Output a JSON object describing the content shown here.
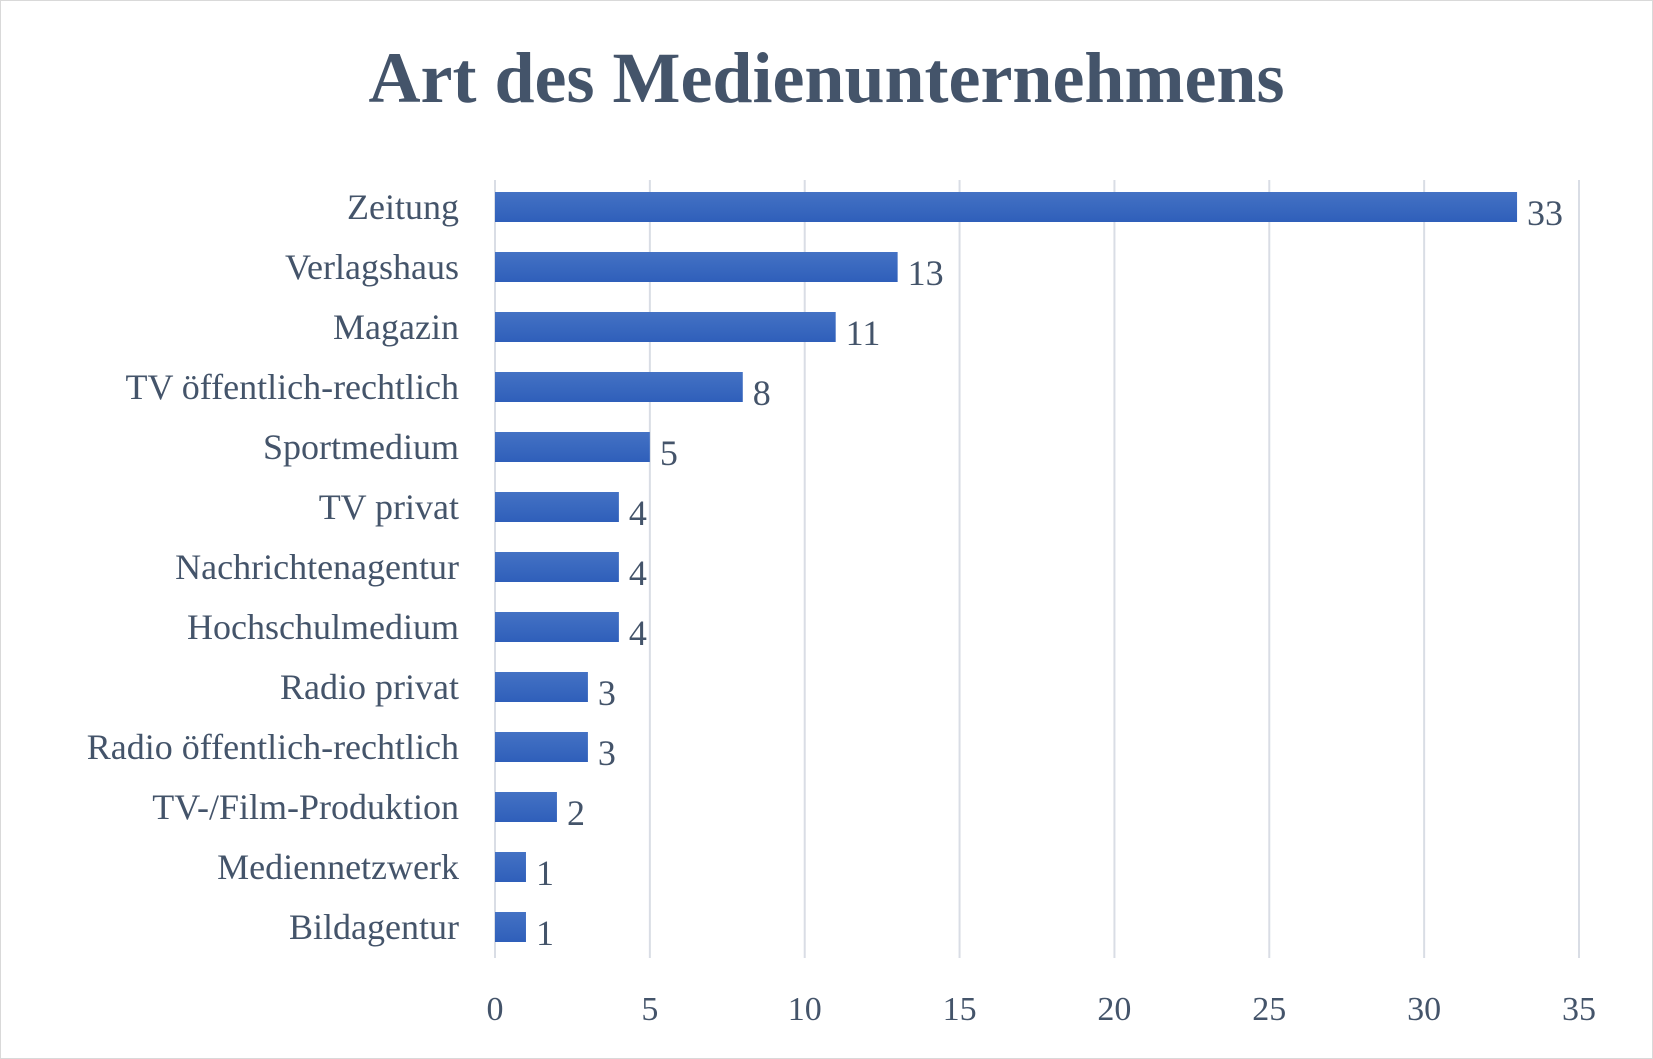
{
  "chart_data": {
    "type": "bar",
    "orientation": "horizontal",
    "title": "Art des Medienunternehmens",
    "categories": [
      "Zeitung",
      "Verlagshaus",
      "Magazin",
      "TV öffentlich-rechtlich",
      "Sportmedium",
      "TV privat",
      "Nachrichtenagentur",
      "Hochschulmedium",
      "Radio privat",
      "Radio öffentlich-rechtlich",
      "TV-/Film-Produktion",
      "Mediennetzwerk",
      "Bildagentur"
    ],
    "values": [
      33,
      13,
      11,
      8,
      5,
      4,
      4,
      4,
      3,
      3,
      2,
      1,
      1
    ],
    "data_labels": [
      "33",
      "13",
      "11",
      "8",
      "5",
      "4",
      "4",
      "4",
      "3",
      "3",
      "2",
      "1",
      "1"
    ],
    "xticks": [
      "0",
      "5",
      "10",
      "15",
      "20",
      "25",
      "30",
      "35"
    ],
    "xlim": [
      0,
      35
    ],
    "grid": "vertical",
    "legend": "none",
    "bar_color": "#4472c4",
    "bar_color_dark": "#2f5fba",
    "text_color": "#44546a",
    "grid_color": "#d9dde5"
  }
}
